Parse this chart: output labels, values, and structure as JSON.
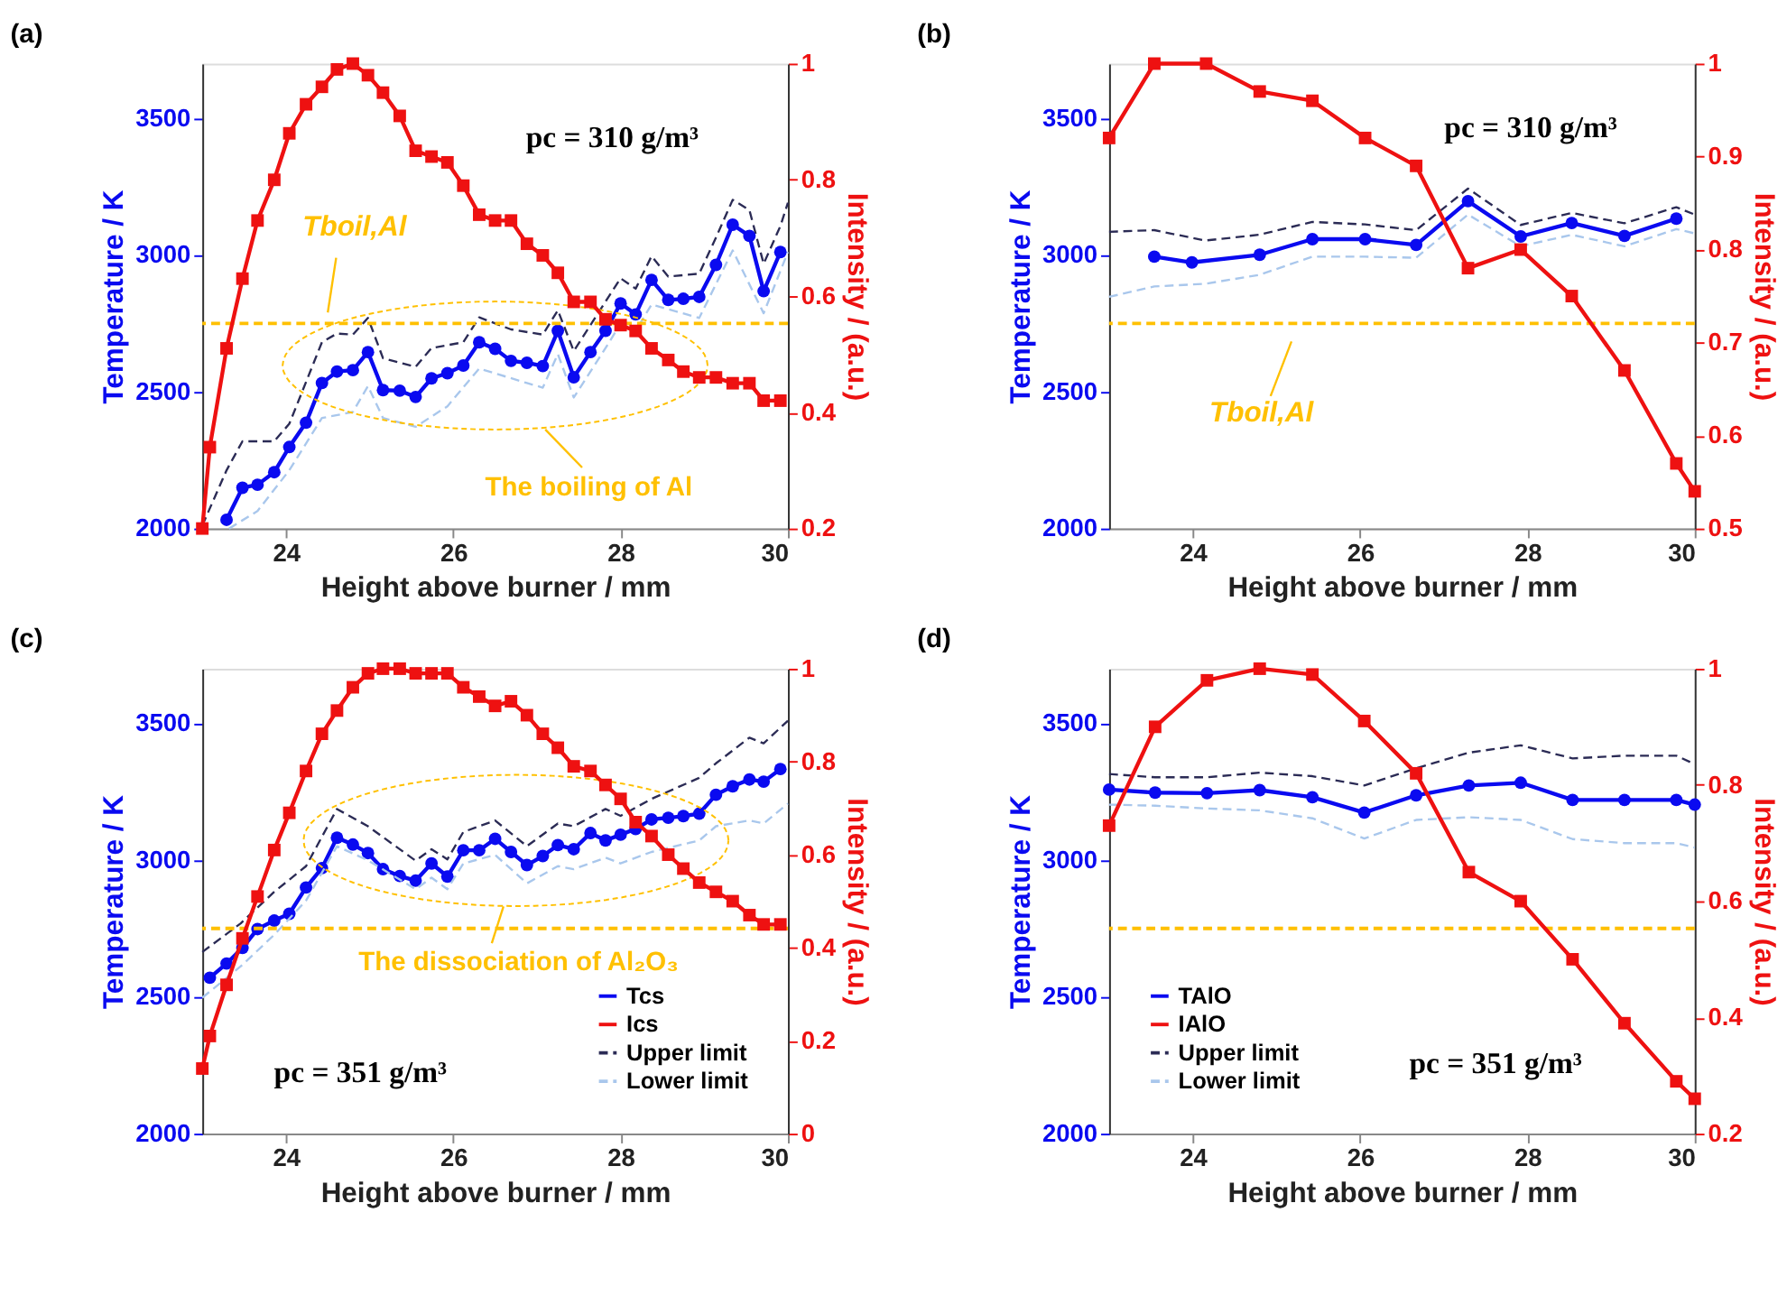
{
  "chart_data": [
    {
      "type": "line",
      "title": "(a)",
      "xlabel": "Height above burner / mm",
      "ylabel": "Temperature / K",
      "y2label": "Intensity / (a.u.)",
      "xlim": [
        23,
        30
      ],
      "xticks": [
        24,
        26,
        28,
        30
      ],
      "ylim": [
        2000,
        3700
      ],
      "yticks": [
        2000,
        2500,
        3000,
        3500
      ],
      "y2lim": [
        0.2,
        1
      ],
      "y2ticks": [
        0.2,
        0.4,
        0.6,
        0.8,
        1
      ],
      "grid": false,
      "ref_lines": [
        {
          "axis": "y",
          "value": 2750,
          "color": "#ffc000",
          "line_style": "dashed",
          "label": "Tboil,Al"
        }
      ],
      "annotations": [
        "The boiling of Al",
        "pc = 310 g/m³"
      ],
      "series": [
        {
          "color": "#2b2b55",
          "line_style": "dashed",
          "marker": "none",
          "x": [
            23.0,
            23.29,
            23.48,
            23.86,
            24.04,
            24.43,
            24.61,
            24.8,
            24.98,
            25.16,
            25.55,
            25.74,
            26.12,
            26.31,
            26.69,
            27.07,
            27.25,
            27.44,
            27.82,
            28.0,
            28.18,
            28.37,
            28.57,
            28.94,
            29.14,
            29.34,
            29.54,
            29.71,
            29.91,
            30.0
          ],
          "values": [
            2011,
            2213,
            2319,
            2319,
            2383,
            2681,
            2713,
            2709,
            2770,
            2623,
            2591,
            2660,
            2681,
            2772,
            2728,
            2709,
            2798,
            2649,
            2830,
            2915,
            2877,
            2996,
            2921,
            2932,
            3064,
            3202,
            3164,
            2968,
            3106,
            3191
          ]
        },
        {
          "color": "#a9c7ec",
          "line_style": "dashed",
          "marker": "none",
          "x": [
            23.32,
            23.66,
            24.04,
            24.43,
            24.8,
            24.98,
            25.16,
            25.55,
            25.93,
            26.31,
            26.88,
            27.07,
            27.25,
            27.44,
            27.82,
            28.0,
            28.18,
            28.37,
            28.94,
            29.34,
            29.71,
            30.0
          ],
          "values": [
            2000,
            2064,
            2213,
            2404,
            2426,
            2521,
            2404,
            2372,
            2447,
            2585,
            2532,
            2515,
            2638,
            2479,
            2660,
            2749,
            2723,
            2819,
            2770,
            3017,
            2787,
            3011
          ]
        },
        {
          "color": "#0a0af0",
          "line_style": "solid",
          "marker": "circle",
          "x": [
            23.29,
            23.48,
            23.66,
            23.86,
            24.04,
            24.24,
            24.43,
            24.61,
            24.8,
            24.98,
            25.16,
            25.36,
            25.55,
            25.74,
            25.93,
            26.12,
            26.31,
            26.5,
            26.69,
            26.88,
            27.07,
            27.25,
            27.44,
            27.64,
            27.82,
            28.0,
            28.18,
            28.37,
            28.57,
            28.75,
            28.94,
            29.14,
            29.34,
            29.54,
            29.71,
            29.91
          ],
          "values": [
            2032,
            2149,
            2160,
            2206,
            2298,
            2387,
            2532,
            2574,
            2579,
            2645,
            2506,
            2504,
            2481,
            2549,
            2568,
            2596,
            2681,
            2657,
            2613,
            2606,
            2594,
            2723,
            2553,
            2645,
            2723,
            2823,
            2783,
            2909,
            2836,
            2840,
            2847,
            2964,
            3111,
            3070,
            2868,
            3011
          ]
        },
        {
          "color": "#ee1111",
          "line_style": "solid",
          "marker": "square",
          "axis": "y2",
          "x": [
            23.0,
            23.09,
            23.29,
            23.48,
            23.66,
            23.86,
            24.04,
            24.24,
            24.43,
            24.61,
            24.8,
            24.98,
            25.16,
            25.36,
            25.55,
            25.74,
            25.93,
            26.12,
            26.31,
            26.5,
            26.69,
            26.88,
            27.07,
            27.25,
            27.44,
            27.64,
            27.82,
            28.0,
            28.18,
            28.37,
            28.57,
            28.75,
            28.94,
            29.14,
            29.34,
            29.54,
            29.71,
            29.91
          ],
          "values": [
            0.2,
            0.34,
            0.51,
            0.63,
            0.73,
            0.8,
            0.88,
            0.93,
            0.96,
            0.99,
            1.0,
            0.98,
            0.95,
            0.91,
            0.85,
            0.84,
            0.83,
            0.79,
            0.74,
            0.73,
            0.73,
            0.69,
            0.67,
            0.64,
            0.59,
            0.59,
            0.56,
            0.55,
            0.54,
            0.51,
            0.49,
            0.47,
            0.46,
            0.46,
            0.45,
            0.45,
            0.42,
            0.42
          ]
        }
      ]
    },
    {
      "type": "line",
      "title": "(b)",
      "xlabel": "Height above burner / mm",
      "ylabel": "Temperature / K",
      "y2label": "Intensity / (a.u.)",
      "xlim": [
        23,
        30
      ],
      "xticks": [
        24,
        26,
        28,
        30
      ],
      "ylim": [
        2000,
        3700
      ],
      "yticks": [
        2000,
        2500,
        3000,
        3500
      ],
      "y2lim": [
        0.5,
        1
      ],
      "y2ticks": [
        0.5,
        0.6,
        0.7,
        0.8,
        0.9,
        1
      ],
      "grid": false,
      "ref_lines": [
        {
          "axis": "y",
          "value": 2750,
          "color": "#ffc000",
          "line_style": "dashed",
          "label": "Tboil,Al"
        }
      ],
      "annotations": [
        "pc = 310 g/m³"
      ],
      "series": [
        {
          "color": "#2b2b55",
          "line_style": "dashed",
          "marker": "none",
          "x": [
            23.0,
            23.54,
            24.15,
            24.79,
            25.43,
            26.06,
            26.67,
            27.29,
            27.92,
            28.53,
            29.16,
            29.78,
            30.0
          ],
          "values": [
            3085,
            3091,
            3053,
            3074,
            3121,
            3112,
            3091,
            3243,
            3110,
            3154,
            3116,
            3175,
            3148
          ]
        },
        {
          "color": "#a9c7ec",
          "line_style": "dashed",
          "marker": "none",
          "x": [
            23.0,
            23.54,
            24.15,
            24.79,
            25.43,
            26.06,
            26.67,
            27.29,
            27.92,
            28.53,
            29.16,
            29.78,
            30.0
          ],
          "values": [
            2847,
            2885,
            2895,
            2927,
            2994,
            2994,
            2990,
            3148,
            3032,
            3074,
            3032,
            3095,
            3079
          ]
        },
        {
          "color": "#0a0af0",
          "line_style": "solid",
          "marker": "circle",
          "x": [
            23.54,
            23.99,
            24.8,
            25.43,
            26.06,
            26.67,
            27.29,
            27.92,
            28.53,
            29.16,
            29.78
          ],
          "values": [
            2994,
            2973,
            3001,
            3058,
            3058,
            3037,
            3197,
            3068,
            3117,
            3070,
            3133
          ]
        },
        {
          "color": "#ee1111",
          "line_style": "solid",
          "marker": "square",
          "axis": "y2",
          "x": [
            23.0,
            23.54,
            24.16,
            24.8,
            25.43,
            26.06,
            26.67,
            27.29,
            27.92,
            28.53,
            29.16,
            29.78,
            30.0
          ],
          "values": [
            0.92,
            1.0,
            1.0,
            0.97,
            0.96,
            0.92,
            0.89,
            0.78,
            0.8,
            0.75,
            0.67,
            0.57,
            0.54
          ]
        }
      ]
    },
    {
      "type": "line",
      "title": "(c)",
      "xlabel": "Height above burner / mm",
      "ylabel": "Temperature / K",
      "y2label": "Intensity / (a.u.)",
      "xlim": [
        23,
        30
      ],
      "xticks": [
        24,
        26,
        28,
        30
      ],
      "ylim": [
        2000,
        3700
      ],
      "yticks": [
        2000,
        2500,
        3000,
        3500
      ],
      "y2lim": [
        0,
        1
      ],
      "y2ticks": [
        0,
        0.2,
        0.4,
        0.6,
        0.8,
        1
      ],
      "grid": false,
      "legend": "bottom right",
      "ref_lines": [
        {
          "axis": "y",
          "value": 2750,
          "color": "#ffc000",
          "line_style": "dashed"
        }
      ],
      "annotations": [
        "The dissociation of Al₂O₃",
        "pc = 351 g/m³"
      ],
      "series": [
        {
          "name": "Tcs",
          "color": "#0a0af0",
          "line_style": "solid",
          "marker": "circle",
          "x": [
            23.09,
            23.29,
            23.48,
            23.66,
            23.86,
            24.04,
            24.24,
            24.43,
            24.61,
            24.8,
            24.98,
            25.16,
            25.36,
            25.55,
            25.74,
            25.93,
            26.12,
            26.31,
            26.5,
            26.69,
            26.88,
            27.07,
            27.25,
            27.44,
            27.64,
            27.82,
            28.0,
            28.18,
            28.37,
            28.57,
            28.75,
            28.94,
            29.14,
            29.34,
            29.54,
            29.71,
            29.91
          ],
          "values": [
            2570,
            2622,
            2679,
            2748,
            2779,
            2804,
            2900,
            2971,
            3082,
            3057,
            3026,
            2967,
            2942,
            2925,
            2988,
            2940,
            3036,
            3036,
            3078,
            3030,
            2982,
            3015,
            3055,
            3040,
            3099,
            3072,
            3093,
            3114,
            3149,
            3155,
            3161,
            3170,
            3239,
            3270,
            3295,
            3287,
            3333
          ]
        },
        {
          "name": "Ics",
          "color": "#ee1111",
          "line_style": "solid",
          "marker": "square",
          "axis": "y2",
          "x": [
            23.0,
            23.09,
            23.29,
            23.48,
            23.66,
            23.86,
            24.04,
            24.24,
            24.43,
            24.61,
            24.8,
            24.98,
            25.16,
            25.36,
            25.55,
            25.74,
            25.93,
            26.12,
            26.31,
            26.5,
            26.69,
            26.88,
            27.07,
            27.25,
            27.44,
            27.64,
            27.82,
            28.0,
            28.18,
            28.37,
            28.57,
            28.75,
            28.94,
            29.14,
            29.34,
            29.54,
            29.71,
            29.91
          ],
          "values": [
            0.14,
            0.21,
            0.32,
            0.42,
            0.51,
            0.61,
            0.69,
            0.78,
            0.86,
            0.91,
            0.96,
            0.99,
            1.0,
            1.0,
            0.99,
            0.99,
            0.99,
            0.96,
            0.94,
            0.92,
            0.93,
            0.9,
            0.86,
            0.83,
            0.79,
            0.78,
            0.75,
            0.72,
            0.67,
            0.64,
            0.6,
            0.57,
            0.54,
            0.52,
            0.5,
            0.47,
            0.45,
            0.45
          ]
        },
        {
          "name": "Upper limit",
          "color": "#2b2b55",
          "line_style": "dashed",
          "marker": "none",
          "x": [
            23.0,
            23.46,
            23.86,
            24.24,
            24.61,
            24.98,
            25.55,
            25.74,
            25.93,
            26.12,
            26.5,
            26.88,
            27.25,
            27.44,
            27.82,
            28.0,
            28.37,
            28.94,
            29.14,
            29.54,
            29.71,
            30.0
          ],
          "values": [
            2664,
            2769,
            2884,
            2978,
            3187,
            3124,
            2998,
            3040,
            3003,
            3103,
            3145,
            3051,
            3134,
            3124,
            3187,
            3162,
            3224,
            3301,
            3354,
            3448,
            3427,
            3510
          ]
        },
        {
          "name": "Lower limit",
          "color": "#a9c7ec",
          "line_style": "dashed",
          "marker": "none",
          "x": [
            23.0,
            23.46,
            23.86,
            24.24,
            24.61,
            24.98,
            25.55,
            25.74,
            25.93,
            26.12,
            26.5,
            26.88,
            27.25,
            27.44,
            27.82,
            28.0,
            28.37,
            28.94,
            29.14,
            29.54,
            29.71,
            30.0
          ],
          "values": [
            2497,
            2612,
            2727,
            2852,
            3051,
            2999,
            2894,
            2936,
            2894,
            2988,
            3019,
            2915,
            2978,
            2967,
            3009,
            2988,
            3030,
            3072,
            3124,
            3145,
            3134,
            3207
          ]
        }
      ]
    },
    {
      "type": "line",
      "title": "(d)",
      "xlabel": "Height above burner / mm",
      "ylabel": "Temperature / K",
      "y2label": "Intensity / (a.u.)",
      "xlim": [
        23,
        30
      ],
      "xticks": [
        24,
        26,
        28,
        30
      ],
      "ylim": [
        2000,
        3700
      ],
      "yticks": [
        2000,
        2500,
        3000,
        3500
      ],
      "y2lim": [
        0.2,
        1
      ],
      "y2ticks": [
        0.2,
        0.4,
        0.6,
        0.8,
        1
      ],
      "grid": false,
      "legend": "bottom left",
      "ref_lines": [
        {
          "axis": "y",
          "value": 2750,
          "color": "#ffc000",
          "line_style": "dashed"
        }
      ],
      "annotations": [
        "pc = 351 g/m³"
      ],
      "series": [
        {
          "name": "TAlO",
          "color": "#0a0af0",
          "line_style": "solid",
          "marker": "circle",
          "x": [
            23.0,
            23.55,
            24.17,
            24.8,
            25.43,
            26.05,
            26.67,
            27.3,
            27.92,
            28.54,
            29.16,
            29.78,
            30.0
          ],
          "values": [
            3258,
            3247,
            3245,
            3256,
            3230,
            3174,
            3237,
            3273,
            3283,
            3220,
            3220,
            3220,
            3203
          ]
        },
        {
          "name": "IAlO",
          "color": "#ee1111",
          "line_style": "solid",
          "marker": "square",
          "axis": "y2",
          "x": [
            23.0,
            23.55,
            24.17,
            24.8,
            25.43,
            26.05,
            26.67,
            27.3,
            27.92,
            28.54,
            29.16,
            29.78,
            30.0
          ],
          "values": [
            0.73,
            0.9,
            0.98,
            1.0,
            0.99,
            0.91,
            0.82,
            0.65,
            0.6,
            0.5,
            0.39,
            0.29,
            0.26
          ]
        },
        {
          "name": "Upper limit",
          "color": "#2b2b55",
          "line_style": "dashed",
          "marker": "none",
          "x": [
            23.0,
            23.55,
            24.17,
            24.8,
            25.43,
            26.05,
            26.67,
            27.3,
            27.92,
            28.54,
            29.16,
            29.78,
            30.0
          ],
          "values": [
            3315,
            3303,
            3303,
            3320,
            3307,
            3273,
            3336,
            3393,
            3420,
            3372,
            3382,
            3382,
            3351
          ]
        },
        {
          "name": "Lower limit",
          "color": "#a9c7ec",
          "line_style": "dashed",
          "marker": "none",
          "x": [
            23.0,
            23.55,
            24.17,
            24.8,
            25.43,
            26.05,
            26.67,
            27.3,
            27.92,
            28.54,
            29.16,
            29.78,
            30.0
          ],
          "values": [
            3203,
            3199,
            3189,
            3182,
            3153,
            3079,
            3147,
            3157,
            3147,
            3077,
            3062,
            3062,
            3046
          ]
        }
      ]
    }
  ]
}
